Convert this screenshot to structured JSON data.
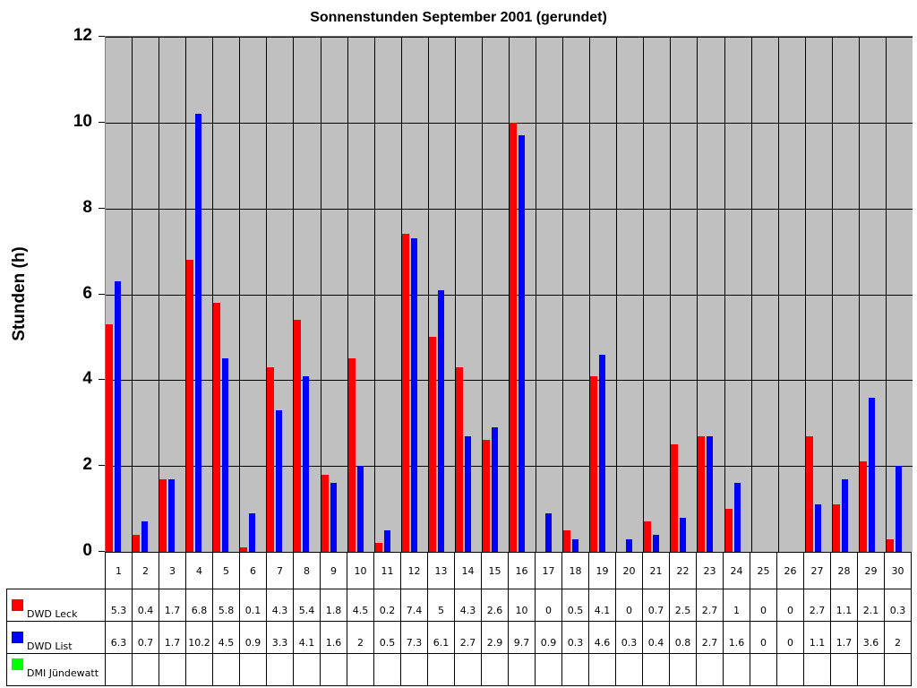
{
  "chart_data": {
    "type": "bar",
    "title": "Sonnenstunden September 2001 (gerundet)",
    "xlabel": "",
    "ylabel": "Stunden (h)",
    "ylim": [
      0,
      12
    ],
    "yticks": [
      0,
      2,
      4,
      6,
      8,
      10,
      12
    ],
    "grid": true,
    "legend_position": "bottom-table",
    "categories": [
      "1",
      "2",
      "3",
      "4",
      "5",
      "6",
      "7",
      "8",
      "9",
      "10",
      "11",
      "12",
      "13",
      "14",
      "15",
      "16",
      "17",
      "18",
      "19",
      "20",
      "21",
      "22",
      "23",
      "24",
      "25",
      "26",
      "27",
      "28",
      "29",
      "30"
    ],
    "series": [
      {
        "name": "DWD Leck",
        "color": "#ff0000",
        "values": [
          5.3,
          0.4,
          1.7,
          6.8,
          5.8,
          0.1,
          4.3,
          5.4,
          1.8,
          4.5,
          0.2,
          7.4,
          5,
          4.3,
          2.6,
          10,
          0,
          0.5,
          4.1,
          0,
          0.7,
          2.5,
          2.7,
          1,
          0,
          0,
          2.7,
          1.1,
          2.1,
          0.3
        ]
      },
      {
        "name": "DWD List",
        "color": "#0000ff",
        "values": [
          6.3,
          0.7,
          1.7,
          10.2,
          4.5,
          0.9,
          3.3,
          4.1,
          1.6,
          2,
          0.5,
          7.3,
          6.1,
          2.7,
          2.9,
          9.7,
          0.9,
          0.3,
          4.6,
          0.3,
          0.4,
          0.8,
          2.7,
          1.6,
          0,
          0,
          1.1,
          1.7,
          3.6,
          2
        ]
      },
      {
        "name": "DMI Jündewatt",
        "color": "#00ff00",
        "values": [
          null,
          null,
          null,
          null,
          null,
          null,
          null,
          null,
          null,
          null,
          null,
          null,
          null,
          null,
          null,
          null,
          null,
          null,
          null,
          null,
          null,
          null,
          null,
          null,
          null,
          null,
          null,
          null,
          null,
          null
        ]
      }
    ]
  },
  "colors": {
    "plot_background": "#c0c0c0",
    "grid": "#000000"
  }
}
